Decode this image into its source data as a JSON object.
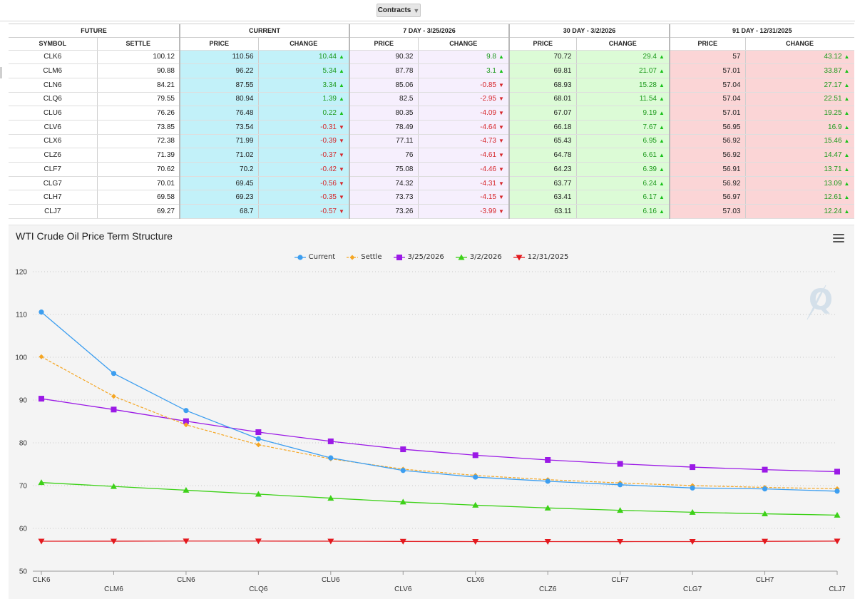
{
  "toolbar": {
    "contracts_label": "Contracts"
  },
  "table": {
    "groups": [
      "FUTURE",
      "CURRENT",
      "7 DAY - 3/25/2026",
      "30 DAY - 3/2/2026",
      "91 DAY - 12/31/2025"
    ],
    "headers": [
      "SYMBOL",
      "SETTLE",
      "PRICE",
      "CHANGE",
      "PRICE",
      "CHANGE",
      "PRICE",
      "CHANGE",
      "PRICE",
      "CHANGE"
    ],
    "rows": [
      {
        "symbol": "CLK6",
        "settle": "100.12",
        "cur_price": "110.56",
        "cur_change": "10.44",
        "d7_price": "90.32",
        "d7_change": "9.8",
        "d30_price": "70.72",
        "d30_change": "29.4",
        "d91_price": "57",
        "d91_change": "43.12"
      },
      {
        "symbol": "CLM6",
        "settle": "90.88",
        "cur_price": "96.22",
        "cur_change": "5.34",
        "d7_price": "87.78",
        "d7_change": "3.1",
        "d30_price": "69.81",
        "d30_change": "21.07",
        "d91_price": "57.01",
        "d91_change": "33.87"
      },
      {
        "symbol": "CLN6",
        "settle": "84.21",
        "cur_price": "87.55",
        "cur_change": "3.34",
        "d7_price": "85.06",
        "d7_change": "-0.85",
        "d30_price": "68.93",
        "d30_change": "15.28",
        "d91_price": "57.04",
        "d91_change": "27.17"
      },
      {
        "symbol": "CLQ6",
        "settle": "79.55",
        "cur_price": "80.94",
        "cur_change": "1.39",
        "d7_price": "82.5",
        "d7_change": "-2.95",
        "d30_price": "68.01",
        "d30_change": "11.54",
        "d91_price": "57.04",
        "d91_change": "22.51"
      },
      {
        "symbol": "CLU6",
        "settle": "76.26",
        "cur_price": "76.48",
        "cur_change": "0.22",
        "d7_price": "80.35",
        "d7_change": "-4.09",
        "d30_price": "67.07",
        "d30_change": "9.19",
        "d91_price": "57.01",
        "d91_change": "19.25"
      },
      {
        "symbol": "CLV6",
        "settle": "73.85",
        "cur_price": "73.54",
        "cur_change": "-0.31",
        "d7_price": "78.49",
        "d7_change": "-4.64",
        "d30_price": "66.18",
        "d30_change": "7.67",
        "d91_price": "56.95",
        "d91_change": "16.9"
      },
      {
        "symbol": "CLX6",
        "settle": "72.38",
        "cur_price": "71.99",
        "cur_change": "-0.39",
        "d7_price": "77.11",
        "d7_change": "-4.73",
        "d30_price": "65.43",
        "d30_change": "6.95",
        "d91_price": "56.92",
        "d91_change": "15.46"
      },
      {
        "symbol": "CLZ6",
        "settle": "71.39",
        "cur_price": "71.02",
        "cur_change": "-0.37",
        "d7_price": "76",
        "d7_change": "-4.61",
        "d30_price": "64.78",
        "d30_change": "6.61",
        "d91_price": "56.92",
        "d91_change": "14.47"
      },
      {
        "symbol": "CLF7",
        "settle": "70.62",
        "cur_price": "70.2",
        "cur_change": "-0.42",
        "d7_price": "75.08",
        "d7_change": "-4.46",
        "d30_price": "64.23",
        "d30_change": "6.39",
        "d91_price": "56.91",
        "d91_change": "13.71"
      },
      {
        "symbol": "CLG7",
        "settle": "70.01",
        "cur_price": "69.45",
        "cur_change": "-0.56",
        "d7_price": "74.32",
        "d7_change": "-4.31",
        "d30_price": "63.77",
        "d30_change": "6.24",
        "d91_price": "56.92",
        "d91_change": "13.09"
      },
      {
        "symbol": "CLH7",
        "settle": "69.58",
        "cur_price": "69.23",
        "cur_change": "-0.35",
        "d7_price": "73.73",
        "d7_change": "-4.15",
        "d30_price": "63.41",
        "d30_change": "6.17",
        "d91_price": "56.97",
        "d91_change": "12.61"
      },
      {
        "symbol": "CLJ7",
        "settle": "69.27",
        "cur_price": "68.7",
        "cur_change": "-0.57",
        "d7_price": "73.26",
        "d7_change": "-3.99",
        "d30_price": "63.11",
        "d30_change": "6.16",
        "d91_price": "57.03",
        "d91_change": "12.24"
      }
    ],
    "colors": {
      "current_bg": "#c2f1f9",
      "d7_bg": "#f6effd",
      "d30_bg": "#dcfbd6",
      "d91_bg": "#fbd5d6",
      "up": "#1d9a1d",
      "down": "#d6262a"
    }
  },
  "chart": {
    "menu_icon": "hamburger-menu-icon",
    "watermark": "Q"
  },
  "chart_data": {
    "type": "line",
    "title": "WTI Crude Oil Price Term Structure",
    "xlabel": "",
    "ylabel": "",
    "categories": [
      "CLK6",
      "CLM6",
      "CLN6",
      "CLQ6",
      "CLU6",
      "CLV6",
      "CLX6",
      "CLZ6",
      "CLF7",
      "CLG7",
      "CLH7",
      "CLJ7"
    ],
    "ylim": [
      50,
      120
    ],
    "yticks": [
      50,
      60,
      70,
      80,
      90,
      100,
      110,
      120
    ],
    "grid": true,
    "legend_position": "top-center",
    "series": [
      {
        "name": "Current",
        "color": "#3c9ef0",
        "marker": "circle",
        "dash": false,
        "values": [
          110.56,
          96.22,
          87.55,
          80.94,
          76.48,
          73.54,
          71.99,
          71.02,
          70.2,
          69.45,
          69.23,
          68.7
        ]
      },
      {
        "name": "Settle",
        "color": "#f5a623",
        "marker": "diamond",
        "dash": true,
        "values": [
          100.12,
          90.88,
          84.21,
          79.55,
          76.26,
          73.85,
          72.38,
          71.39,
          70.62,
          70.01,
          69.58,
          69.27
        ]
      },
      {
        "name": "3/25/2026",
        "color": "#9b19e6",
        "marker": "square",
        "dash": false,
        "values": [
          90.32,
          87.78,
          85.06,
          82.5,
          80.35,
          78.49,
          77.11,
          76,
          75.08,
          74.32,
          73.73,
          73.26
        ]
      },
      {
        "name": "3/2/2026",
        "color": "#3dd118",
        "marker": "triangle",
        "dash": false,
        "values": [
          70.72,
          69.81,
          68.93,
          68.01,
          67.07,
          66.18,
          65.43,
          64.78,
          64.23,
          63.77,
          63.41,
          63.11
        ]
      },
      {
        "name": "12/31/2025",
        "color": "#e3191e",
        "marker": "triangle-down",
        "dash": false,
        "values": [
          57,
          57.01,
          57.04,
          57.04,
          57.01,
          56.95,
          56.92,
          56.92,
          56.91,
          56.92,
          56.97,
          57.03
        ]
      }
    ]
  }
}
